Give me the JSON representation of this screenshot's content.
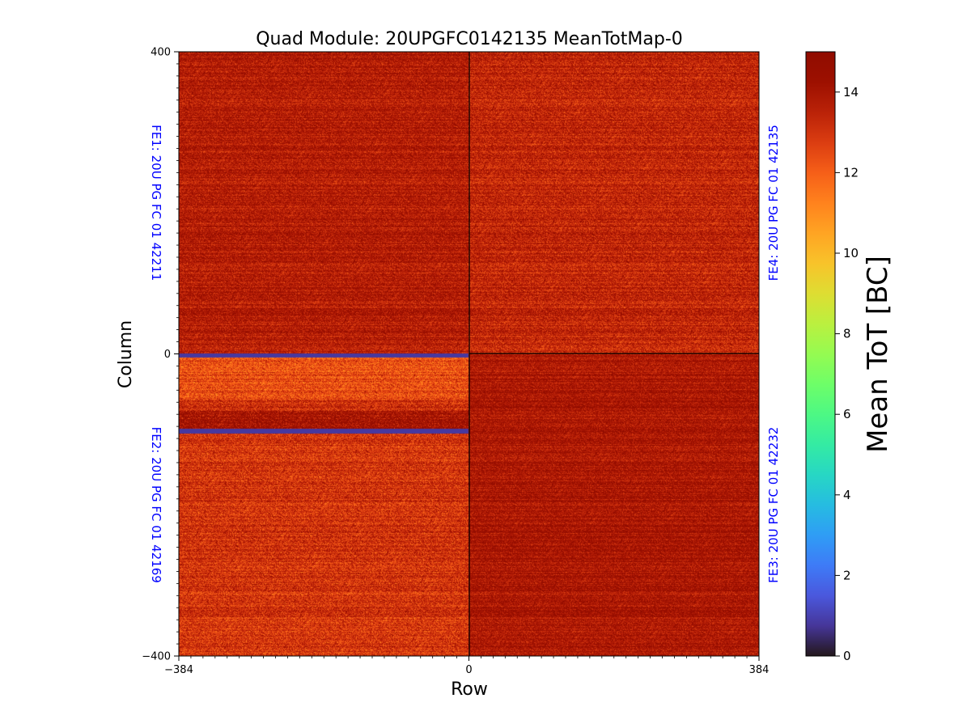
{
  "chart_data": {
    "type": "heatmap",
    "title": "Quad Module: 20UPGFC0142135 MeanTotMap-0",
    "xlabel": "Row",
    "ylabel": "Column",
    "xlim": [
      -384,
      384
    ],
    "ylim": [
      -400,
      400
    ],
    "xticks": [
      {
        "value": -384,
        "label": "−384"
      },
      {
        "value": 0,
        "label": "0"
      },
      {
        "value": 384,
        "label": "384"
      }
    ],
    "yticks": [
      {
        "value": 400,
        "label": "400"
      },
      {
        "value": 0,
        "label": "0"
      },
      {
        "value": -400,
        "label": "−400"
      }
    ],
    "colorbar": {
      "label": "Mean ToT [BC]",
      "range": [
        0,
        15
      ],
      "ticks": [
        {
          "value": 0,
          "label": "0"
        },
        {
          "value": 2,
          "label": "2"
        },
        {
          "value": 4,
          "label": "4"
        },
        {
          "value": 6,
          "label": "6"
        },
        {
          "value": 8,
          "label": "8"
        },
        {
          "value": 10,
          "label": "10"
        },
        {
          "value": 12,
          "label": "12"
        },
        {
          "value": 14,
          "label": "14"
        }
      ]
    },
    "fe_labels": [
      {
        "id": "fe1",
        "text": "FE1: 20U PG FC 01 42211",
        "side": "left",
        "quadrant": "top-left"
      },
      {
        "id": "fe2",
        "text": "FE2: 20U PG FC 01 42169",
        "side": "left",
        "quadrant": "bottom-left"
      },
      {
        "id": "fe3",
        "text": "FE3: 20U PG FC 01 42232",
        "side": "right",
        "quadrant": "bottom-right"
      },
      {
        "id": "fe4",
        "text": "FE4: 20U PG FC 01 42135",
        "side": "right",
        "quadrant": "top-right"
      }
    ],
    "quadrants": [
      {
        "name": "FE1",
        "x": [
          -384,
          0
        ],
        "y": [
          0,
          400
        ],
        "mean_tot": 13.7,
        "spread": 1.1
      },
      {
        "name": "FE4",
        "x": [
          0,
          384
        ],
        "y": [
          0,
          400
        ],
        "mean_tot": 13.4,
        "spread": 1.2
      },
      {
        "name": "FE2",
        "x": [
          -384,
          0
        ],
        "y": [
          -400,
          0
        ],
        "mean_tot": 13.0,
        "spread": 1.3
      },
      {
        "name": "FE3",
        "x": [
          0,
          384
        ],
        "y": [
          -400,
          0
        ],
        "mean_tot": 13.9,
        "spread": 1.0
      }
    ],
    "dead_regions": [
      {
        "x": [
          -384,
          0
        ],
        "y": [
          -4,
          0
        ],
        "mean_tot": 0.8
      },
      {
        "x": [
          -384,
          0
        ],
        "y": [
          -104,
          -100
        ],
        "mean_tot": 0.8
      }
    ],
    "colormap": "turbo"
  },
  "colors": {
    "fe_label": "#0000ff",
    "axis": "#000000",
    "background": "#ffffff"
  }
}
